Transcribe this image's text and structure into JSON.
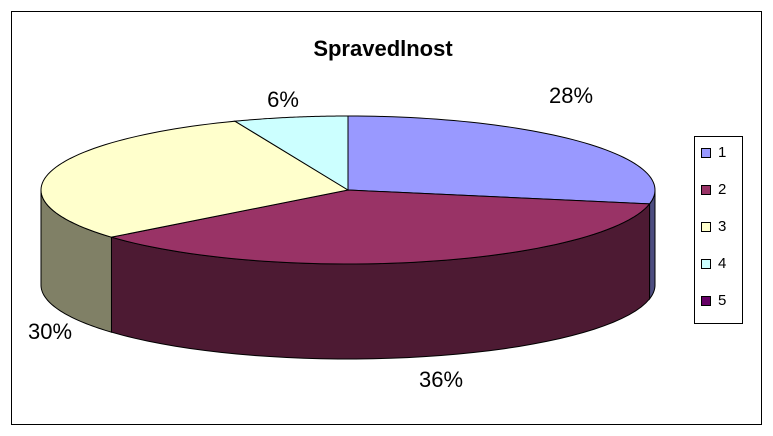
{
  "chart_data": {
    "type": "pie3d",
    "title": "Spravedlnost",
    "categories": [
      "1",
      "2",
      "3",
      "4",
      "5"
    ],
    "values": [
      28,
      36,
      30,
      6,
      0
    ],
    "value_labels": [
      "28%",
      "36%",
      "30%",
      "6%",
      null
    ],
    "colors": [
      "#9999ff",
      "#993366",
      "#ffffcc",
      "#ccffff",
      "#660066"
    ],
    "legend": "right"
  }
}
